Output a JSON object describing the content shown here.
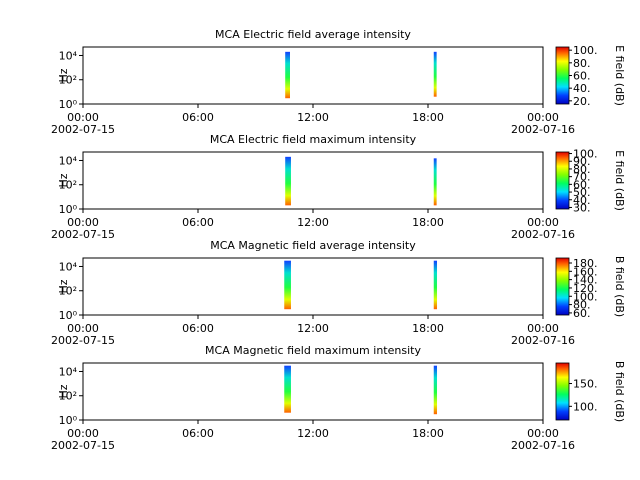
{
  "chart_data": [
    {
      "type": "spectrogram",
      "title": "MCA  Electric field average intensity",
      "ylabel": "Hz",
      "colorbar_label": "E field (dB)",
      "log_y": true,
      "ylim": [
        1,
        50000
      ],
      "yticks": [
        {
          "value": 1,
          "label": "10⁰"
        },
        {
          "value": 100,
          "label": "10²"
        },
        {
          "value": 10000,
          "label": "10⁴"
        }
      ],
      "xlim": [
        0,
        24
      ],
      "xticks": [
        {
          "value": 0,
          "label": "00:00"
        },
        {
          "value": 6,
          "label": "06:00"
        },
        {
          "value": 12,
          "label": "12:00"
        },
        {
          "value": 18,
          "label": "18:00"
        },
        {
          "value": 24,
          "label": "00:00"
        }
      ],
      "date_labels": [
        {
          "value": 0,
          "label": "2002-07-15"
        },
        {
          "value": 24,
          "label": "2002-07-16"
        }
      ],
      "clim": [
        15,
        105
      ],
      "cticks": [
        {
          "value": 20,
          "label": "20."
        },
        {
          "value": 40,
          "label": "40."
        },
        {
          "value": 60,
          "label": "60."
        },
        {
          "value": 80,
          "label": "80."
        },
        {
          "value": 100,
          "label": "100."
        }
      ],
      "bursts": [
        {
          "x": [
            10.55,
            10.8
          ],
          "y": [
            3,
            20000
          ]
        },
        {
          "x": [
            18.3,
            18.45
          ],
          "y": [
            4,
            20000
          ]
        }
      ]
    },
    {
      "type": "spectrogram",
      "title": "MCA  Electric field maximum intensity",
      "ylabel": "Hz",
      "colorbar_label": "E field (dB)",
      "log_y": true,
      "ylim": [
        1,
        50000
      ],
      "yticks": [
        {
          "value": 1,
          "label": "10⁰"
        },
        {
          "value": 100,
          "label": "10²"
        },
        {
          "value": 10000,
          "label": "10⁴"
        }
      ],
      "xlim": [
        0,
        24
      ],
      "xticks": [
        {
          "value": 0,
          "label": "00:00"
        },
        {
          "value": 6,
          "label": "06:00"
        },
        {
          "value": 12,
          "label": "12:00"
        },
        {
          "value": 18,
          "label": "18:00"
        },
        {
          "value": 24,
          "label": "00:00"
        }
      ],
      "date_labels": [
        {
          "value": 0,
          "label": "2002-07-15"
        },
        {
          "value": 24,
          "label": "2002-07-16"
        }
      ],
      "clim": [
        28,
        102
      ],
      "cticks": [
        {
          "value": 30,
          "label": "30."
        },
        {
          "value": 40,
          "label": "40."
        },
        {
          "value": 50,
          "label": "50."
        },
        {
          "value": 60,
          "label": "60."
        },
        {
          "value": 70,
          "label": "70."
        },
        {
          "value": 80,
          "label": "80."
        },
        {
          "value": 90,
          "label": "90."
        },
        {
          "value": 100,
          "label": "100."
        }
      ],
      "bursts": [
        {
          "x": [
            10.55,
            10.85
          ],
          "y": [
            2,
            20000
          ]
        },
        {
          "x": [
            18.3,
            18.45
          ],
          "y": [
            2,
            15000
          ]
        }
      ]
    },
    {
      "type": "spectrogram",
      "title": "MCA  Magnetic field average intensity",
      "ylabel": "Hz",
      "colorbar_label": "B field (dB)",
      "log_y": true,
      "ylim": [
        1,
        50000
      ],
      "yticks": [
        {
          "value": 1,
          "label": "10⁰"
        },
        {
          "value": 100,
          "label": "10²"
        },
        {
          "value": 10000,
          "label": "10⁴"
        }
      ],
      "xlim": [
        0,
        24
      ],
      "xticks": [
        {
          "value": 0,
          "label": "00:00"
        },
        {
          "value": 6,
          "label": "06:00"
        },
        {
          "value": 12,
          "label": "12:00"
        },
        {
          "value": 18,
          "label": "18:00"
        },
        {
          "value": 24,
          "label": "00:00"
        }
      ],
      "date_labels": [
        {
          "value": 0,
          "label": "2002-07-15"
        },
        {
          "value": 24,
          "label": "2002-07-16"
        }
      ],
      "clim": [
        55,
        192
      ],
      "cticks": [
        {
          "value": 60,
          "label": "60."
        },
        {
          "value": 80,
          "label": "80."
        },
        {
          "value": 100,
          "label": "100."
        },
        {
          "value": 120,
          "label": "120."
        },
        {
          "value": 140,
          "label": "140."
        },
        {
          "value": 160,
          "label": "160."
        },
        {
          "value": 180,
          "label": "180."
        }
      ],
      "bursts": [
        {
          "x": [
            10.5,
            10.85
          ],
          "y": [
            3,
            30000
          ]
        },
        {
          "x": [
            18.3,
            18.47
          ],
          "y": [
            3,
            30000
          ]
        }
      ]
    },
    {
      "type": "spectrogram",
      "title": "MCA  Magnetic field maximum intensity",
      "ylabel": "Hz",
      "colorbar_label": "B field (dB)",
      "log_y": true,
      "ylim": [
        1,
        50000
      ],
      "yticks": [
        {
          "value": 1,
          "label": "10⁰"
        },
        {
          "value": 100,
          "label": "10²"
        },
        {
          "value": 10000,
          "label": "10⁴"
        }
      ],
      "xlim": [
        0,
        24
      ],
      "xticks": [
        {
          "value": 0,
          "label": "00:00"
        },
        {
          "value": 6,
          "label": "06:00"
        },
        {
          "value": 12,
          "label": "12:00"
        },
        {
          "value": 18,
          "label": "18:00"
        },
        {
          "value": 24,
          "label": "00:00"
        }
      ],
      "date_labels": [
        {
          "value": 0,
          "label": "2002-07-15"
        },
        {
          "value": 24,
          "label": "2002-07-16"
        }
      ],
      "clim": [
        70,
        195
      ],
      "cticks": [
        {
          "value": 100,
          "label": "100."
        },
        {
          "value": 150,
          "label": "150."
        }
      ],
      "bursts": [
        {
          "x": [
            10.5,
            10.85
          ],
          "y": [
            4,
            30000
          ]
        },
        {
          "x": [
            18.3,
            18.47
          ],
          "y": [
            3,
            30000
          ]
        }
      ]
    }
  ]
}
